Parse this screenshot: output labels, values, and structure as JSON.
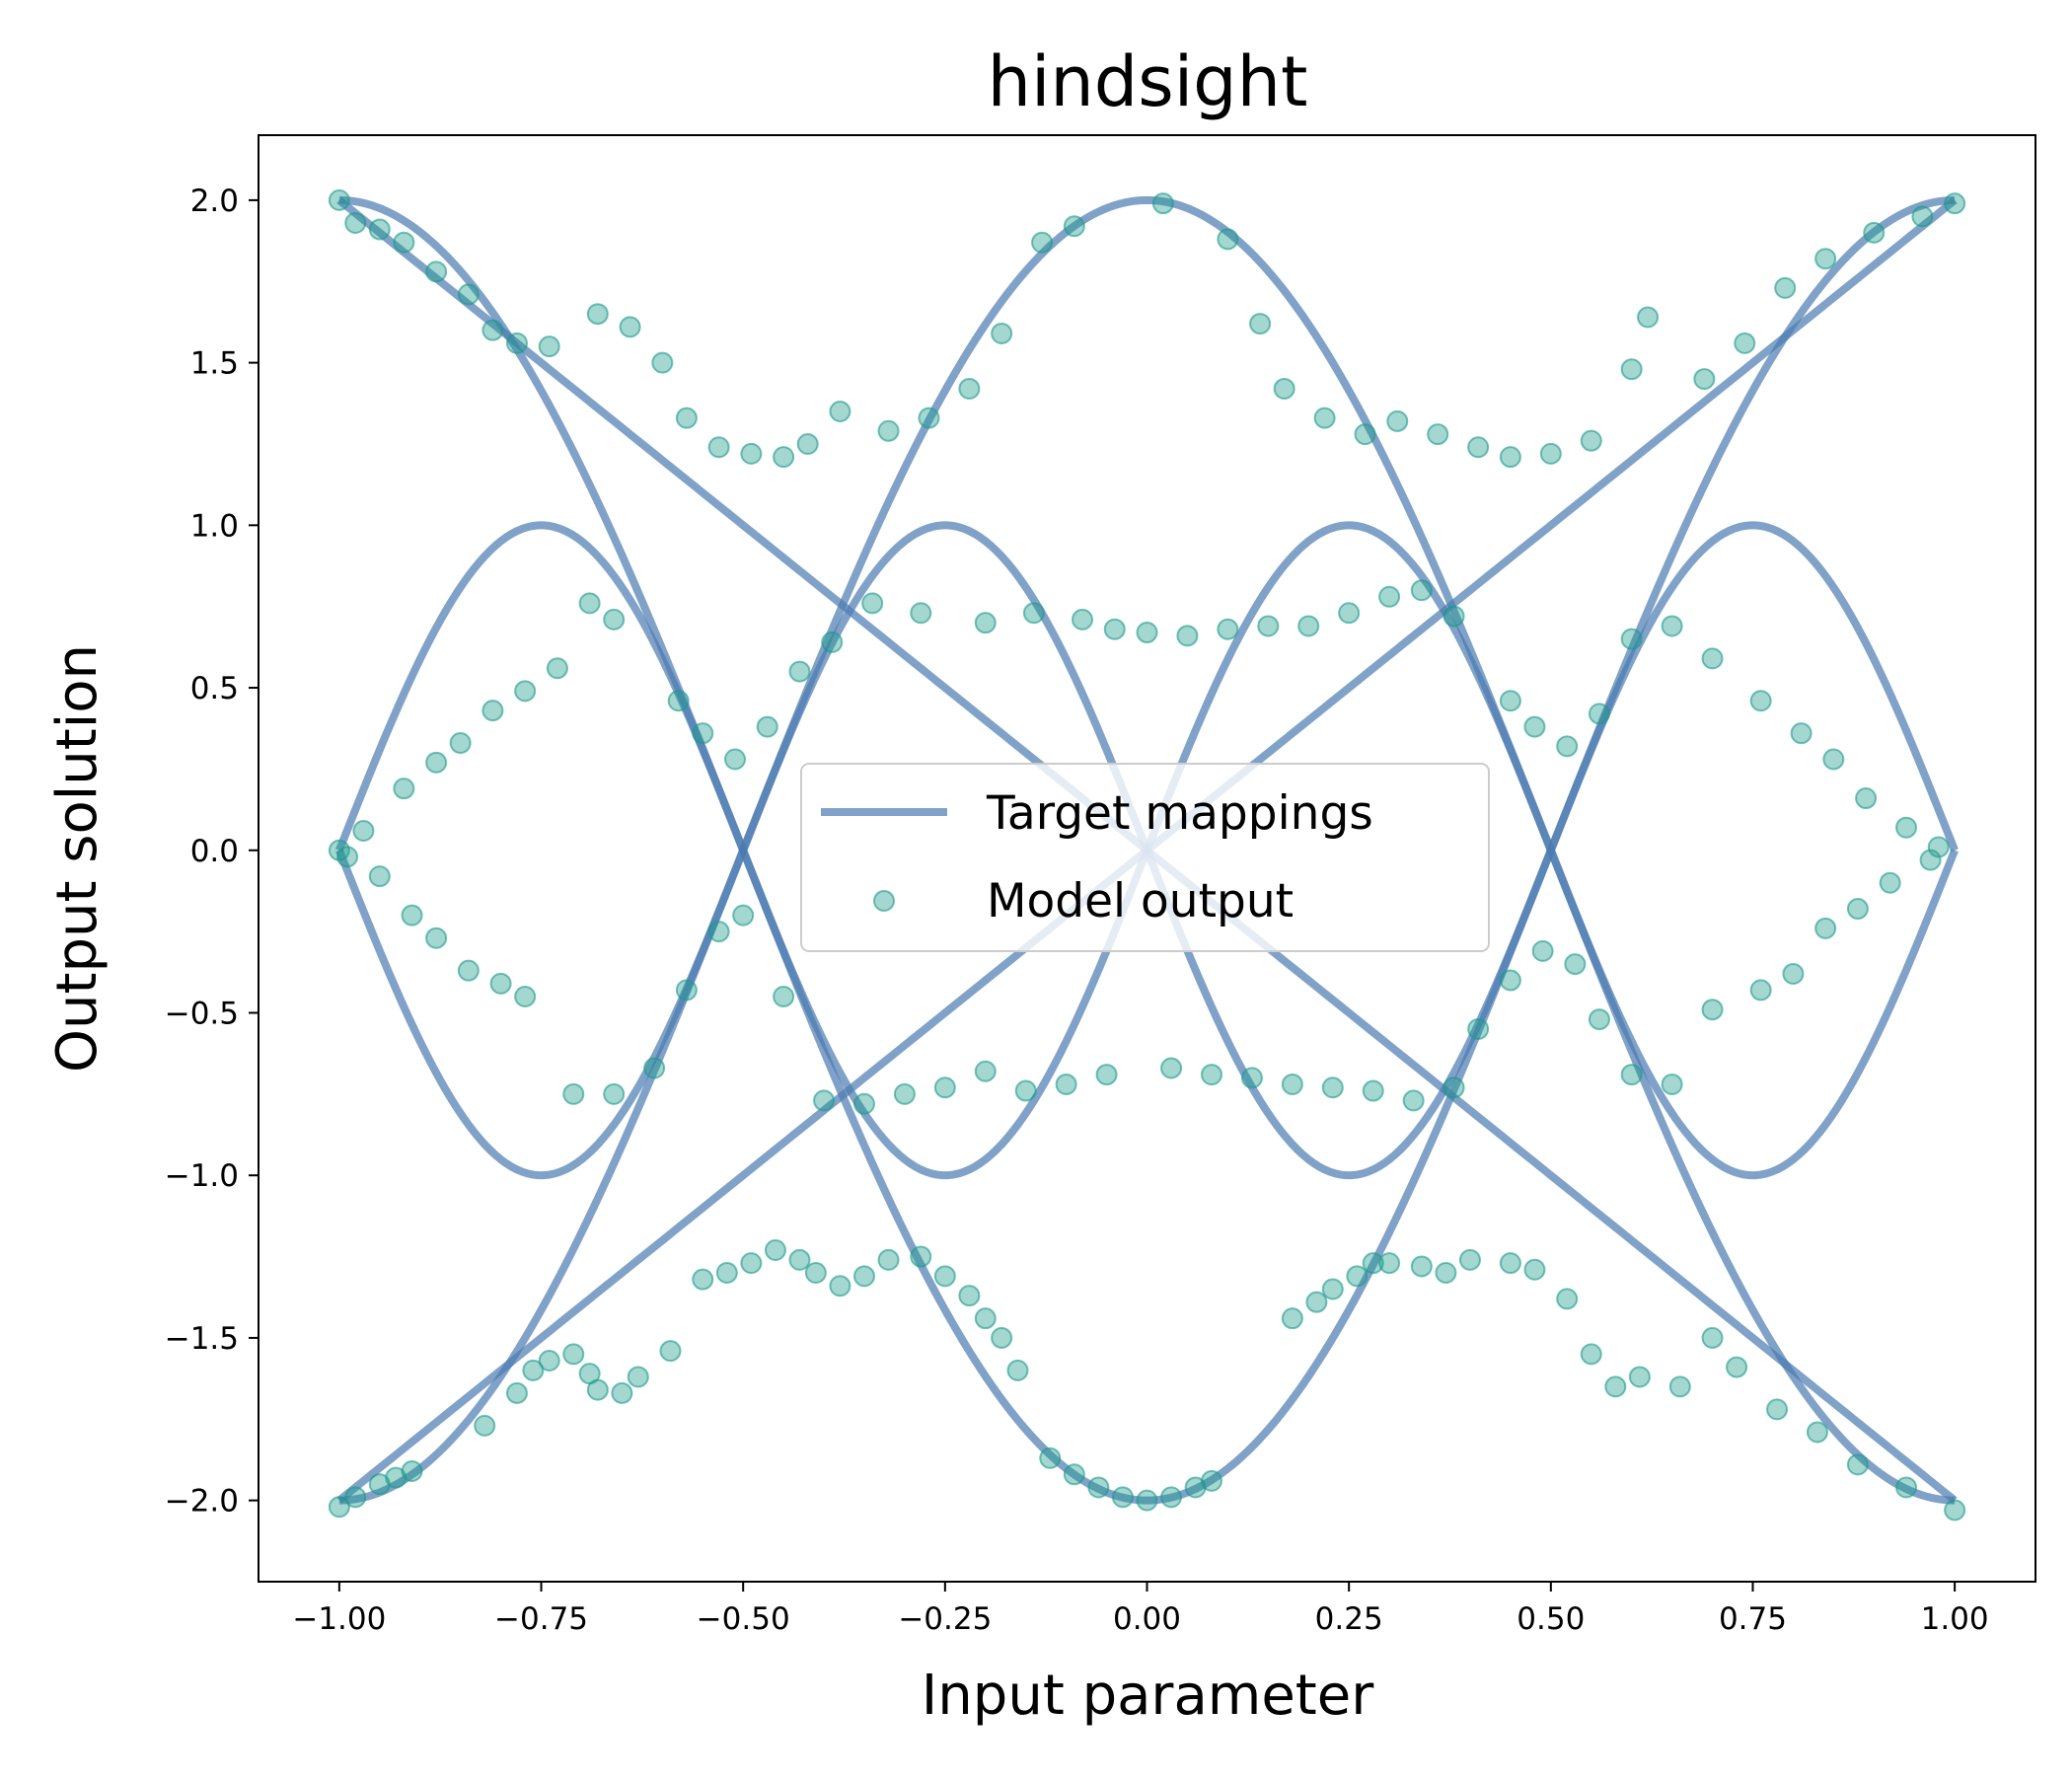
{
  "chart_data": {
    "type": "scatter",
    "title": "hindsight",
    "xlabel": "Input parameter",
    "ylabel": "Output solution",
    "xlim": [
      -1.1,
      1.1
    ],
    "ylim": [
      -2.25,
      2.2
    ],
    "grid": false,
    "legend_position": "center",
    "x_ticks": [
      "−1.00",
      "−0.75",
      "−0.50",
      "−0.25",
      "0.00",
      "0.25",
      "0.50",
      "0.75",
      "1.00"
    ],
    "x_tick_values": [
      -1.0,
      -0.75,
      -0.5,
      -0.25,
      0.0,
      0.25,
      0.5,
      0.75,
      1.0
    ],
    "y_ticks": [
      "−2.0",
      "−1.5",
      "−1.0",
      "−0.5",
      "0.0",
      "0.5",
      "1.0",
      "1.5",
      "2.0"
    ],
    "y_tick_values": [
      -2.0,
      -1.5,
      -1.0,
      -0.5,
      0.0,
      0.5,
      1.0,
      1.5,
      2.0
    ],
    "series": [
      {
        "name": "Target mappings",
        "kind": "line",
        "color": "#4a7ab0",
        "curves": [
          {
            "function": "2x"
          },
          {
            "function": "-2x"
          },
          {
            "function": "2cos(pi x)"
          },
          {
            "function": "-2cos(pi x)"
          },
          {
            "function": "sin(2 pi x)"
          },
          {
            "function": "-sin(2 pi x)"
          }
        ]
      },
      {
        "name": "Model output",
        "kind": "scatter",
        "color": "#1a9a8a",
        "points": [
          [
            -1.0,
            -2.02
          ],
          [
            -0.98,
            -1.99
          ],
          [
            -0.95,
            -1.95
          ],
          [
            -0.93,
            -1.93
          ],
          [
            -0.91,
            -1.91
          ],
          [
            -0.82,
            -1.77
          ],
          [
            -0.78,
            -1.67
          ],
          [
            -0.76,
            -1.6
          ],
          [
            -0.74,
            -1.57
          ],
          [
            -0.71,
            -1.55
          ],
          [
            -0.69,
            -1.61
          ],
          [
            -0.68,
            -1.66
          ],
          [
            -0.65,
            -1.67
          ],
          [
            -0.63,
            -1.62
          ],
          [
            -0.59,
            -1.54
          ],
          [
            -0.55,
            -1.32
          ],
          [
            -0.52,
            -1.3
          ],
          [
            -0.49,
            -1.27
          ],
          [
            -0.46,
            -1.23
          ],
          [
            -0.43,
            -1.26
          ],
          [
            -0.41,
            -1.3
          ],
          [
            -0.38,
            -1.34
          ],
          [
            -0.35,
            -1.31
          ],
          [
            -0.32,
            -1.26
          ],
          [
            -0.28,
            -1.25
          ],
          [
            -0.25,
            -1.31
          ],
          [
            -0.22,
            -1.37
          ],
          [
            -0.2,
            -1.44
          ],
          [
            -0.18,
            -1.5
          ],
          [
            -0.16,
            -1.6
          ],
          [
            -0.12,
            -1.87
          ],
          [
            -0.09,
            -1.92
          ],
          [
            -0.06,
            -1.96
          ],
          [
            -0.03,
            -1.99
          ],
          [
            0.0,
            -2.0
          ],
          [
            0.03,
            -1.99
          ],
          [
            0.06,
            -1.96
          ],
          [
            0.08,
            -1.94
          ],
          [
            0.18,
            -1.44
          ],
          [
            0.21,
            -1.39
          ],
          [
            0.23,
            -1.35
          ],
          [
            0.26,
            -1.31
          ],
          [
            0.28,
            -1.27
          ],
          [
            0.3,
            -1.27
          ],
          [
            0.34,
            -1.28
          ],
          [
            0.37,
            -1.3
          ],
          [
            0.4,
            -1.26
          ],
          [
            0.45,
            -1.27
          ],
          [
            0.48,
            -1.29
          ],
          [
            0.52,
            -1.38
          ],
          [
            0.55,
            -1.55
          ],
          [
            0.58,
            -1.65
          ],
          [
            0.61,
            -1.62
          ],
          [
            0.66,
            -1.65
          ],
          [
            0.7,
            -1.5
          ],
          [
            0.73,
            -1.59
          ],
          [
            0.78,
            -1.72
          ],
          [
            0.83,
            -1.79
          ],
          [
            0.88,
            -1.89
          ],
          [
            0.94,
            -1.96
          ],
          [
            1.0,
            -2.03
          ],
          [
            -1.0,
            2.0
          ],
          [
            -0.98,
            1.93
          ],
          [
            -0.95,
            1.91
          ],
          [
            -0.92,
            1.87
          ],
          [
            -0.88,
            1.78
          ],
          [
            -0.84,
            1.71
          ],
          [
            -0.81,
            1.6
          ],
          [
            -0.78,
            1.56
          ],
          [
            -0.74,
            1.55
          ],
          [
            -0.68,
            1.65
          ],
          [
            -0.64,
            1.61
          ],
          [
            -0.6,
            1.5
          ],
          [
            -0.57,
            1.33
          ],
          [
            -0.53,
            1.24
          ],
          [
            -0.49,
            1.22
          ],
          [
            -0.45,
            1.21
          ],
          [
            -0.42,
            1.25
          ],
          [
            -0.38,
            1.35
          ],
          [
            -0.32,
            1.29
          ],
          [
            -0.27,
            1.33
          ],
          [
            -0.22,
            1.42
          ],
          [
            -0.18,
            1.59
          ],
          [
            -0.13,
            1.87
          ],
          [
            -0.09,
            1.92
          ],
          [
            0.02,
            1.99
          ],
          [
            0.1,
            1.88
          ],
          [
            0.14,
            1.62
          ],
          [
            0.17,
            1.42
          ],
          [
            0.22,
            1.33
          ],
          [
            0.27,
            1.28
          ],
          [
            0.31,
            1.32
          ],
          [
            0.36,
            1.28
          ],
          [
            0.41,
            1.24
          ],
          [
            0.45,
            1.21
          ],
          [
            0.5,
            1.22
          ],
          [
            0.55,
            1.26
          ],
          [
            0.6,
            1.48
          ],
          [
            0.62,
            1.64
          ],
          [
            0.69,
            1.45
          ],
          [
            0.74,
            1.56
          ],
          [
            0.79,
            1.73
          ],
          [
            0.84,
            1.82
          ],
          [
            0.9,
            1.9
          ],
          [
            0.96,
            1.95
          ],
          [
            1.0,
            1.99
          ],
          [
            -1.0,
            0.0
          ],
          [
            -0.97,
            0.06
          ],
          [
            -0.92,
            0.19
          ],
          [
            -0.88,
            0.27
          ],
          [
            -0.85,
            0.33
          ],
          [
            -0.81,
            0.43
          ],
          [
            -0.77,
            0.49
          ],
          [
            -0.73,
            0.56
          ],
          [
            -0.69,
            0.76
          ],
          [
            -0.66,
            0.71
          ],
          [
            -0.58,
            0.46
          ],
          [
            -0.55,
            0.36
          ],
          [
            -0.51,
            0.28
          ],
          [
            -0.47,
            0.38
          ],
          [
            -0.43,
            0.55
          ],
          [
            -0.39,
            0.64
          ],
          [
            -0.34,
            0.76
          ],
          [
            -0.28,
            0.73
          ],
          [
            -0.2,
            0.7
          ],
          [
            -0.14,
            0.73
          ],
          [
            -0.08,
            0.71
          ],
          [
            -0.04,
            0.68
          ],
          [
            0.0,
            0.67
          ],
          [
            0.05,
            0.66
          ],
          [
            0.1,
            0.68
          ],
          [
            0.15,
            0.69
          ],
          [
            0.2,
            0.69
          ],
          [
            0.25,
            0.73
          ],
          [
            0.3,
            0.78
          ],
          [
            0.34,
            0.8
          ],
          [
            0.38,
            0.72
          ],
          [
            0.45,
            0.46
          ],
          [
            0.48,
            0.38
          ],
          [
            0.52,
            0.32
          ],
          [
            0.56,
            0.42
          ],
          [
            0.6,
            0.65
          ],
          [
            0.65,
            0.69
          ],
          [
            0.7,
            0.59
          ],
          [
            0.76,
            0.46
          ],
          [
            0.81,
            0.36
          ],
          [
            0.85,
            0.28
          ],
          [
            0.89,
            0.16
          ],
          [
            0.94,
            0.07
          ],
          [
            0.98,
            0.01
          ],
          [
            -0.99,
            -0.02
          ],
          [
            -0.95,
            -0.08
          ],
          [
            -0.91,
            -0.2
          ],
          [
            -0.88,
            -0.27
          ],
          [
            -0.84,
            -0.37
          ],
          [
            -0.8,
            -0.41
          ],
          [
            -0.77,
            -0.45
          ],
          [
            -0.71,
            -0.75
          ],
          [
            -0.66,
            -0.75
          ],
          [
            -0.61,
            -0.67
          ],
          [
            -0.57,
            -0.43
          ],
          [
            -0.53,
            -0.25
          ],
          [
            -0.5,
            -0.2
          ],
          [
            -0.45,
            -0.45
          ],
          [
            -0.4,
            -0.77
          ],
          [
            -0.35,
            -0.78
          ],
          [
            -0.3,
            -0.75
          ],
          [
            -0.25,
            -0.73
          ],
          [
            -0.2,
            -0.68
          ],
          [
            -0.15,
            -0.74
          ],
          [
            -0.1,
            -0.72
          ],
          [
            -0.05,
            -0.69
          ],
          [
            0.03,
            -0.67
          ],
          [
            0.08,
            -0.69
          ],
          [
            0.13,
            -0.7
          ],
          [
            0.18,
            -0.72
          ],
          [
            0.23,
            -0.73
          ],
          [
            0.28,
            -0.74
          ],
          [
            0.33,
            -0.77
          ],
          [
            0.38,
            -0.73
          ],
          [
            0.41,
            -0.55
          ],
          [
            0.45,
            -0.4
          ],
          [
            0.49,
            -0.31
          ],
          [
            0.53,
            -0.35
          ],
          [
            0.56,
            -0.52
          ],
          [
            0.6,
            -0.69
          ],
          [
            0.65,
            -0.72
          ],
          [
            0.7,
            -0.49
          ],
          [
            0.76,
            -0.43
          ],
          [
            0.8,
            -0.38
          ],
          [
            0.84,
            -0.24
          ],
          [
            0.88,
            -0.18
          ],
          [
            0.92,
            -0.1
          ],
          [
            0.97,
            -0.03
          ]
        ]
      }
    ]
  }
}
